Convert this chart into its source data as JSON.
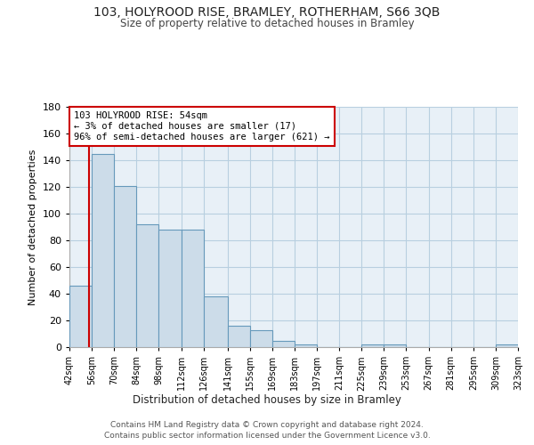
{
  "title1": "103, HOLYROOD RISE, BRAMLEY, ROTHERHAM, S66 3QB",
  "title2": "Size of property relative to detached houses in Bramley",
  "xlabel": "Distribution of detached houses by size in Bramley",
  "ylabel": "Number of detached properties",
  "bar_edges": [
    42,
    56,
    70,
    84,
    98,
    112,
    126,
    141,
    155,
    169,
    183,
    197,
    211,
    225,
    239,
    253,
    267,
    281,
    295,
    309,
    323
  ],
  "bar_heights": [
    46,
    145,
    121,
    92,
    88,
    88,
    38,
    16,
    13,
    5,
    2,
    0,
    0,
    2,
    2,
    0,
    0,
    0,
    0,
    2
  ],
  "bar_color": "#ccdce9",
  "bar_edge_color": "#6699bb",
  "grid_color": "#b8cfe0",
  "background_color": "#e8f0f7",
  "property_line_x": 54,
  "annotation_line1": "103 HOLYROOD RISE: 54sqm",
  "annotation_line2": "← 3% of detached houses are smaller (17)",
  "annotation_line3": "96% of semi-detached houses are larger (621) →",
  "annotation_box_color": "#ffffff",
  "annotation_border_color": "#cc0000",
  "footer_line1": "Contains HM Land Registry data © Crown copyright and database right 2024.",
  "footer_line2": "Contains public sector information licensed under the Government Licence v3.0.",
  "ylim": [
    0,
    180
  ],
  "yticks": [
    0,
    20,
    40,
    60,
    80,
    100,
    120,
    140,
    160,
    180
  ]
}
